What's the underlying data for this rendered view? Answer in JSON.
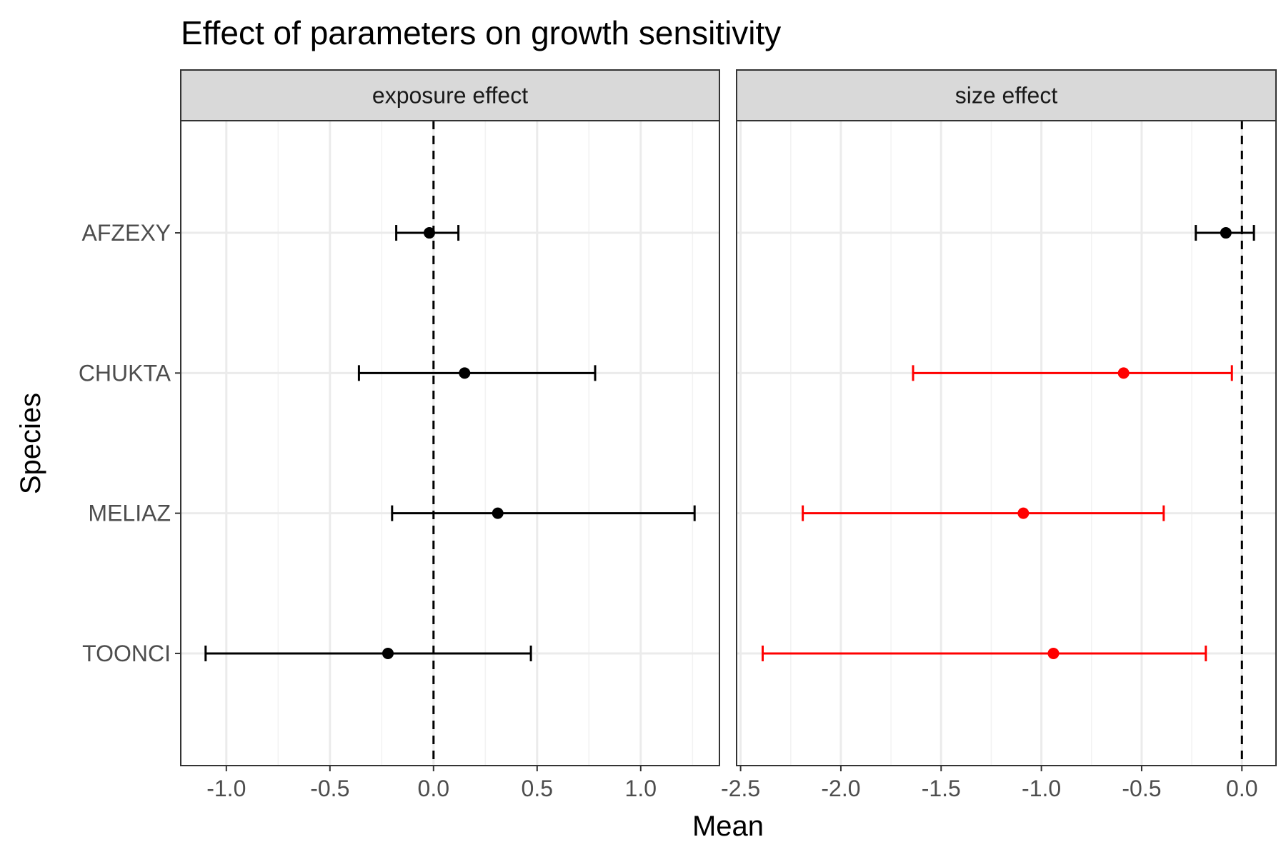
{
  "chart_data": {
    "type": "forest-errorbar",
    "title": "Effect of parameters on growth sensitivity",
    "xlabel": "Mean",
    "ylabel": "Species",
    "categories": [
      "AFZEXY",
      "CHUKTA",
      "MELIAZ",
      "TOONCI"
    ],
    "reference_line": 0,
    "grid": true,
    "panels": [
      {
        "name": "exposure effect",
        "xlim": [
          -1.22,
          1.38
        ],
        "xticks": [
          -1.0,
          -0.5,
          0.0,
          0.5,
          1.0
        ],
        "xtick_labels": [
          "-1.0",
          "-0.5",
          "0.0",
          "0.5",
          "1.0"
        ],
        "points": [
          {
            "species": "AFZEXY",
            "mean": -0.02,
            "lower": -0.18,
            "upper": 0.12,
            "color": "#000000"
          },
          {
            "species": "CHUKTA",
            "mean": 0.15,
            "lower": -0.36,
            "upper": 0.78,
            "color": "#000000"
          },
          {
            "species": "MELIAZ",
            "mean": 0.31,
            "lower": -0.2,
            "upper": 1.26,
            "color": "#000000"
          },
          {
            "species": "TOONCI",
            "mean": -0.22,
            "lower": -1.1,
            "upper": 0.47,
            "color": "#000000"
          }
        ]
      },
      {
        "name": "size effect",
        "xlim": [
          -2.52,
          0.17
        ],
        "xticks": [
          -2.5,
          -2.0,
          -1.5,
          -1.0,
          -0.5,
          0.0
        ],
        "xtick_labels": [
          "-2.5",
          "-2.0",
          "-1.5",
          "-1.0",
          "-0.5",
          "0.0"
        ],
        "points": [
          {
            "species": "AFZEXY",
            "mean": -0.08,
            "lower": -0.23,
            "upper": 0.06,
            "color": "#000000"
          },
          {
            "species": "CHUKTA",
            "mean": -0.59,
            "lower": -1.64,
            "upper": -0.05,
            "color": "#ff0000"
          },
          {
            "species": "MELIAZ",
            "mean": -1.09,
            "lower": -2.19,
            "upper": -0.39,
            "color": "#ff0000"
          },
          {
            "species": "TOONCI",
            "mean": -0.94,
            "lower": -2.39,
            "upper": -0.18,
            "color": "#ff0000"
          }
        ]
      }
    ]
  }
}
